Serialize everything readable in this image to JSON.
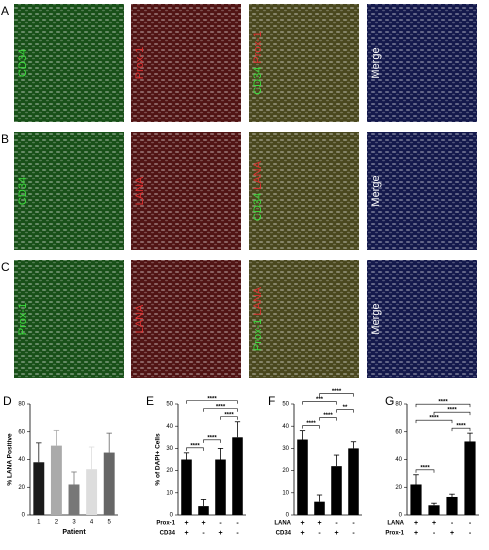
{
  "figure": {
    "panels": [
      {
        "letter": "A",
        "images": [
          {
            "labels": [
              {
                "text": "CD34",
                "color": "#3ddc3d"
              }
            ]
          },
          {
            "labels": [
              {
                "text": "Prox-1",
                "color": "#e03030"
              }
            ]
          },
          {
            "labels": [
              {
                "text": "CD34",
                "color": "#3ddc3d"
              },
              {
                "text": "Prox-1",
                "color": "#e03030"
              }
            ]
          },
          {
            "labels": [
              {
                "text": "Merge",
                "color": "#ffffff"
              }
            ]
          }
        ]
      },
      {
        "letter": "B",
        "images": [
          {
            "labels": [
              {
                "text": "CD34",
                "color": "#3ddc3d"
              }
            ]
          },
          {
            "labels": [
              {
                "text": "LANA",
                "color": "#e03030"
              }
            ]
          },
          {
            "labels": [
              {
                "text": "CD34",
                "color": "#3ddc3d"
              },
              {
                "text": "LANA",
                "color": "#e03030"
              }
            ]
          },
          {
            "labels": [
              {
                "text": "Merge",
                "color": "#ffffff"
              }
            ]
          }
        ]
      },
      {
        "letter": "C",
        "images": [
          {
            "labels": [
              {
                "text": "Prox-1",
                "color": "#3ddc3d"
              }
            ]
          },
          {
            "labels": [
              {
                "text": "LANA",
                "color": "#e03030"
              }
            ]
          },
          {
            "labels": [
              {
                "text": "Prox-1",
                "color": "#3ddc3d"
              },
              {
                "text": "LANA",
                "color": "#e03030"
              }
            ]
          },
          {
            "labels": [
              {
                "text": "Merge",
                "color": "#ffffff"
              }
            ]
          }
        ]
      }
    ]
  },
  "chart_data": [
    {
      "type": "bar",
      "panel": "D",
      "ylabel": "% LANA Positive",
      "xlabel": "Patient",
      "categories": [
        "1",
        "2",
        "3",
        "4",
        "5"
      ],
      "values": [
        38,
        50,
        22,
        33,
        45
      ],
      "errors": [
        14,
        11,
        9,
        16,
        14
      ],
      "colors": [
        "#1a1a1a",
        "#aaaaaa",
        "#777777",
        "#dddddd",
        "#666666"
      ],
      "ylim": [
        0,
        80
      ],
      "yticks": [
        0,
        20,
        40,
        60,
        80
      ]
    },
    {
      "type": "bar",
      "panel": "E",
      "ylabel": "% of DAPI+ Cells",
      "values": [
        25,
        4,
        25,
        35
      ],
      "errors": [
        3,
        3,
        5,
        7
      ],
      "colors": [
        "#000000",
        "#000000",
        "#000000",
        "#000000"
      ],
      "ylim": [
        0,
        50
      ],
      "yticks": [
        0,
        10,
        20,
        30,
        40,
        50
      ],
      "rows": [
        {
          "name": "Prox-1",
          "signs": [
            "+",
            "+",
            "-",
            "-"
          ]
        },
        {
          "name": "CD34",
          "signs": [
            "+",
            "-",
            "+",
            "-"
          ]
        }
      ],
      "significance": [
        {
          "from": 0,
          "to": 1,
          "label": "****"
        },
        {
          "from": 1,
          "to": 2,
          "label": "****"
        },
        {
          "from": 2,
          "to": 3,
          "label": "****"
        },
        {
          "from": 1,
          "to": 3,
          "label": "****"
        },
        {
          "from": 0,
          "to": 3,
          "label": "****"
        }
      ]
    },
    {
      "type": "bar",
      "panel": "F",
      "values": [
        34,
        6,
        22,
        30
      ],
      "errors": [
        4,
        3,
        5,
        3
      ],
      "colors": [
        "#000000",
        "#000000",
        "#000000",
        "#000000"
      ],
      "ylim": [
        0,
        50
      ],
      "yticks": [
        0,
        10,
        20,
        30,
        40,
        50
      ],
      "rows": [
        {
          "name": "LANA",
          "signs": [
            "+",
            "+",
            "-",
            "-"
          ]
        },
        {
          "name": "CD34",
          "signs": [
            "+",
            "-",
            "+",
            "-"
          ]
        }
      ],
      "significance": [
        {
          "from": 0,
          "to": 1,
          "label": "****"
        },
        {
          "from": 1,
          "to": 2,
          "label": "****"
        },
        {
          "from": 2,
          "to": 3,
          "label": "**"
        },
        {
          "from": 0,
          "to": 2,
          "label": "***"
        },
        {
          "from": 1,
          "to": 3,
          "label": "****"
        }
      ]
    },
    {
      "type": "bar",
      "panel": "G",
      "values": [
        22,
        7,
        13,
        53
      ],
      "errors": [
        7,
        1.5,
        2,
        6
      ],
      "colors": [
        "#000000",
        "#000000",
        "#000000",
        "#000000"
      ],
      "ylim": [
        0,
        80
      ],
      "yticks": [
        0,
        20,
        40,
        60,
        80
      ],
      "rows": [
        {
          "name": "LANA",
          "signs": [
            "+",
            "+",
            "-",
            "-"
          ]
        },
        {
          "name": "Prox-1",
          "signs": [
            "+",
            "-",
            "+",
            "-"
          ]
        }
      ],
      "significance": [
        {
          "from": 0,
          "to": 1,
          "label": "****"
        },
        {
          "from": 2,
          "to": 3,
          "label": "****"
        },
        {
          "from": 0,
          "to": 2,
          "label": "****"
        },
        {
          "from": 1,
          "to": 3,
          "label": "****"
        },
        {
          "from": 0,
          "to": 3,
          "label": "****"
        }
      ]
    }
  ]
}
